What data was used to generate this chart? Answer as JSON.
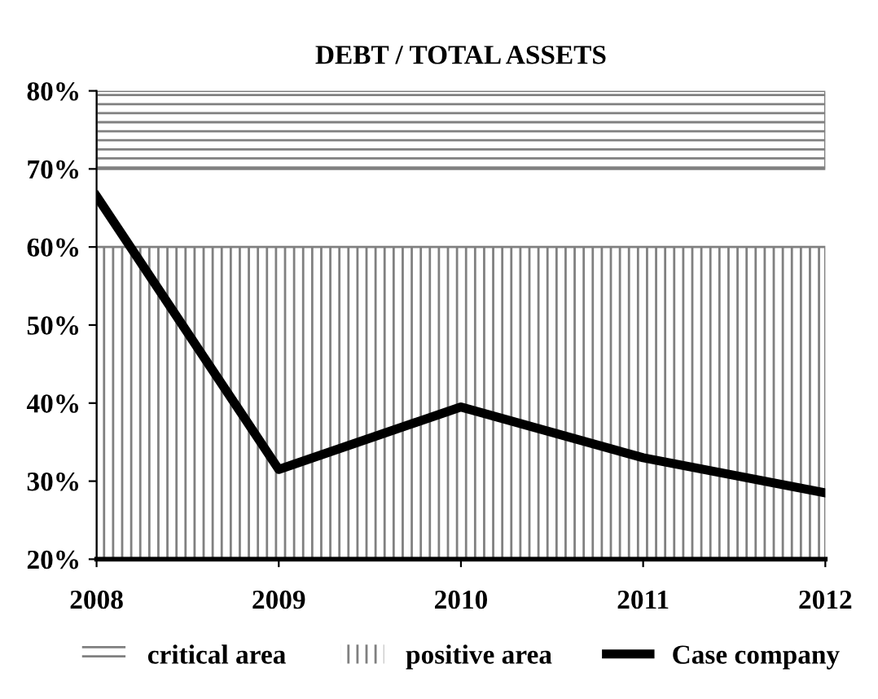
{
  "chart_data": {
    "type": "line",
    "title": "DEBT / TOTAL ASSETS",
    "x": [
      2008,
      2009,
      2010,
      2011,
      2012
    ],
    "series": [
      {
        "name": "Case company",
        "color": "#000000",
        "values": [
          66.5,
          31.5,
          39.5,
          33,
          28.5
        ]
      }
    ],
    "xlim": [
      2008,
      2012
    ],
    "xticks": [
      2008,
      2009,
      2010,
      2011,
      2012
    ],
    "ylim": [
      20,
      80
    ],
    "yticks": [
      {
        "value": 20,
        "label": "20%"
      },
      {
        "value": 30,
        "label": "30%"
      },
      {
        "value": 40,
        "label": "40%"
      },
      {
        "value": 50,
        "label": "50%"
      },
      {
        "value": 60,
        "label": "60%"
      },
      {
        "value": 70,
        "label": "70%"
      },
      {
        "value": 80,
        "label": "80%"
      }
    ],
    "bands": [
      {
        "axis": "y",
        "from": 70,
        "to": 80,
        "label": "critical area",
        "color": "#808080"
      },
      {
        "axis": "y",
        "from": 20,
        "to": 60,
        "label": "positive area",
        "color": "#808080"
      }
    ],
    "legend": "bottom",
    "grid": false,
    "marker": "none",
    "line_style": "solid"
  }
}
